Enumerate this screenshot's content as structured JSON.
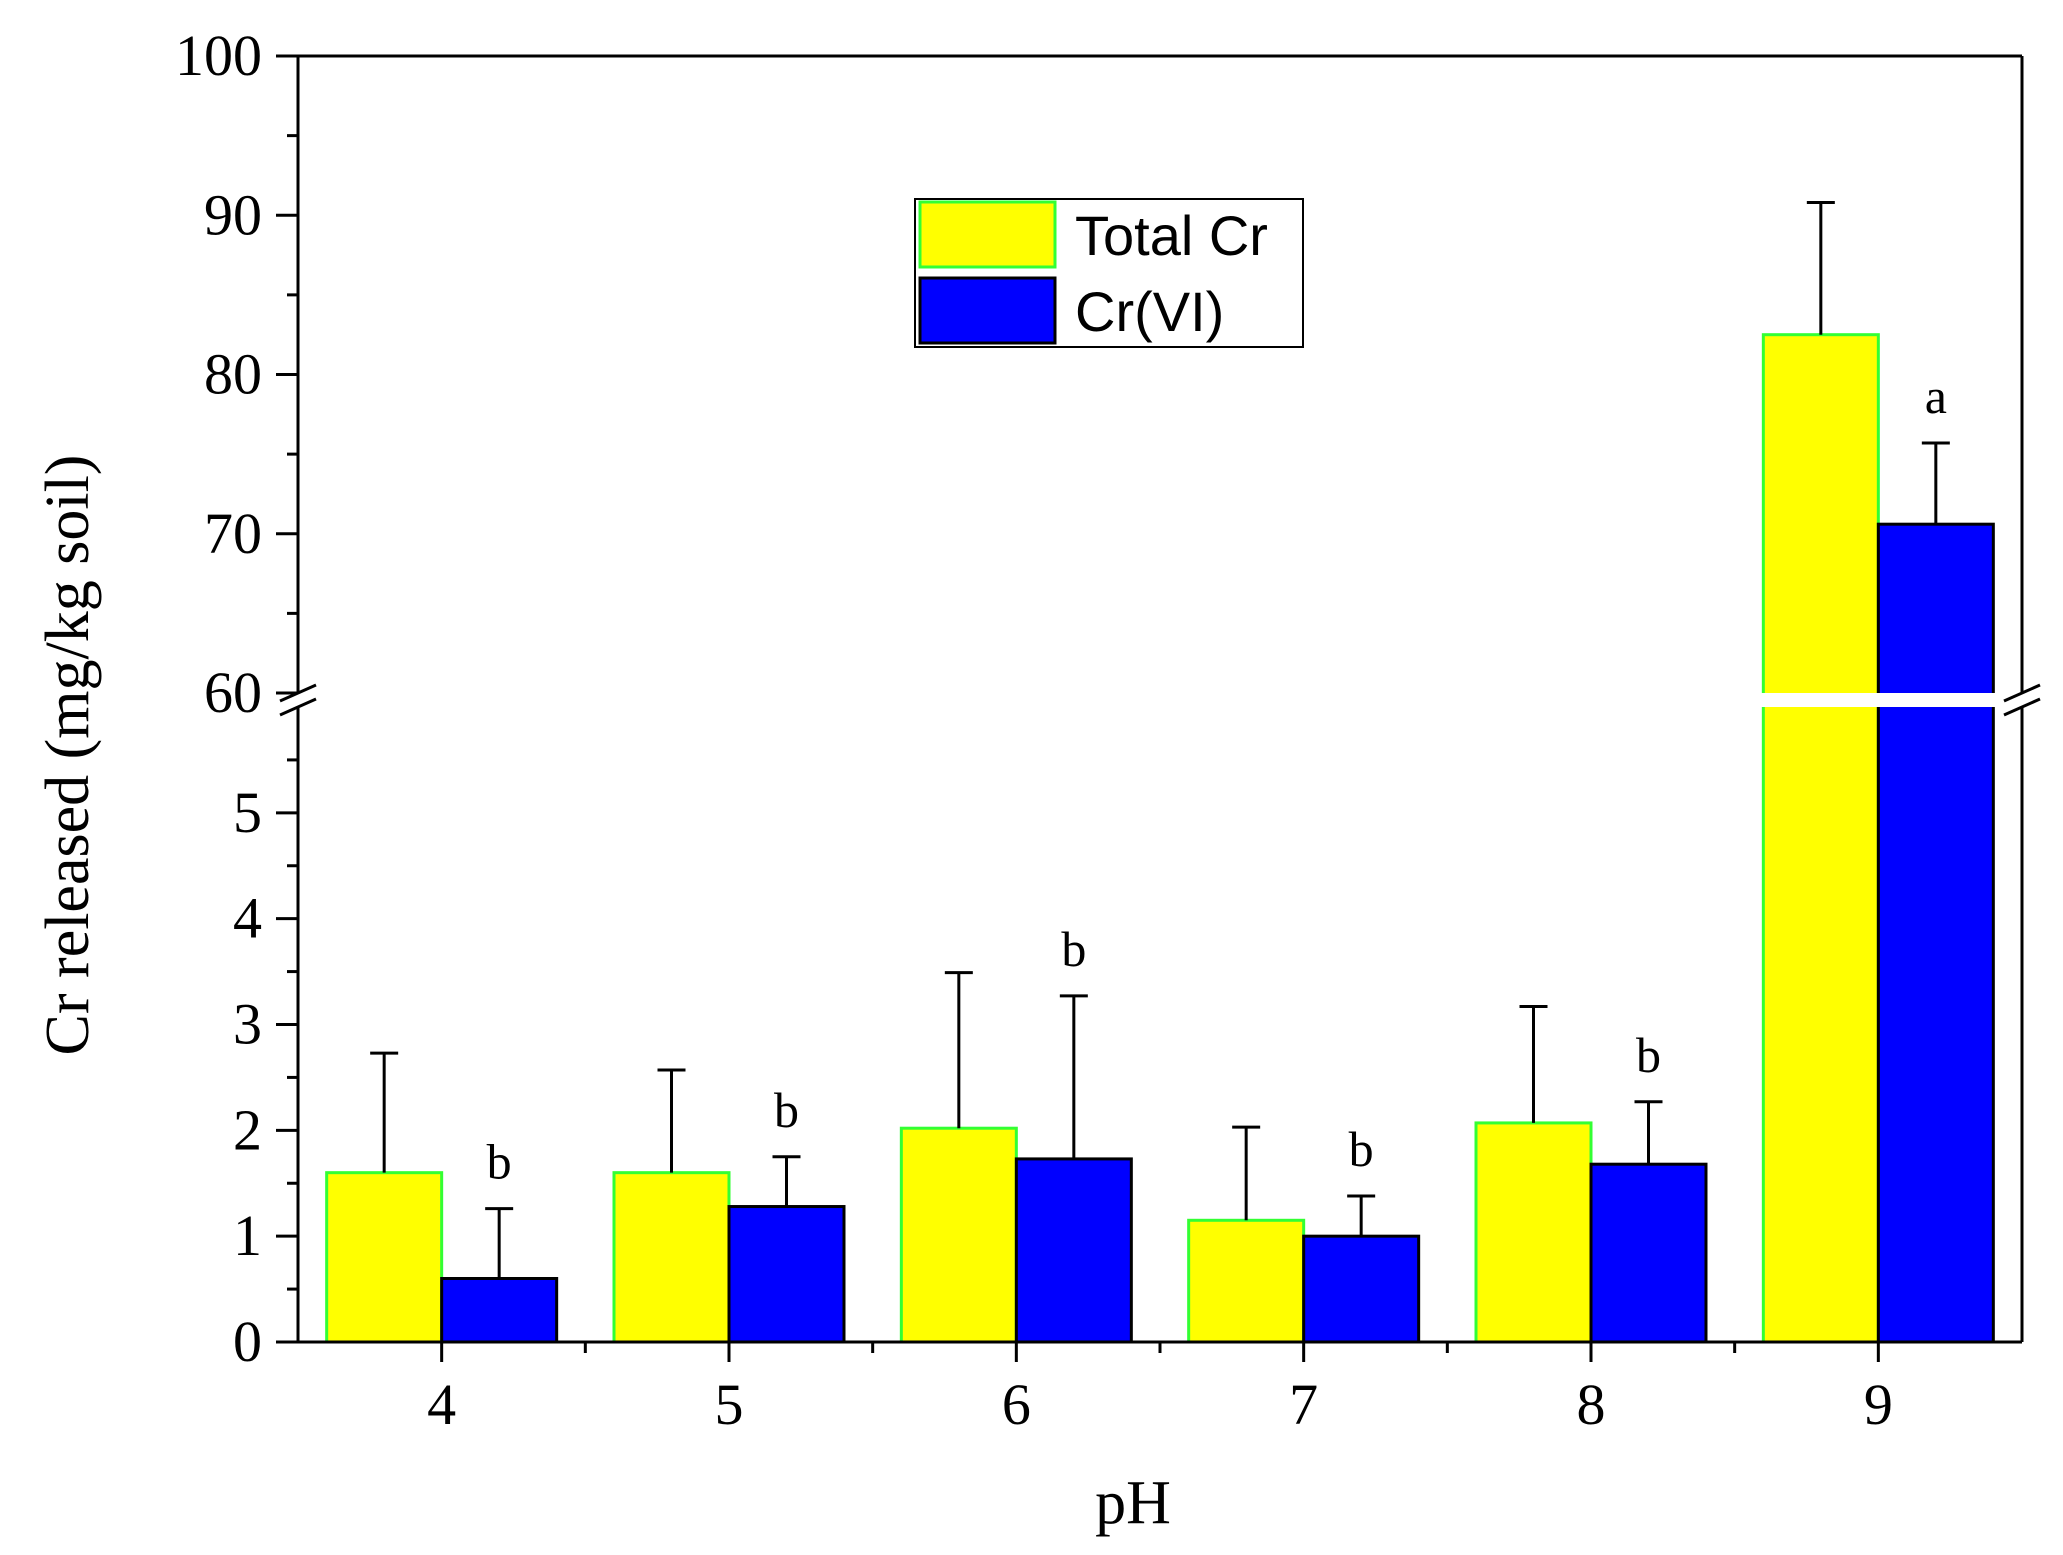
{
  "chart_data": {
    "type": "bar",
    "title": "",
    "xlabel": "pH",
    "ylabel": "Cr released (mg/kg soil)",
    "categories": [
      "4",
      "5",
      "6",
      "7",
      "8",
      "9"
    ],
    "series": [
      {
        "name": "Total Cr",
        "color": "#ffff00",
        "edge_color": "#33ff33",
        "values": [
          1.6,
          1.6,
          2.02,
          1.15,
          2.07,
          82.5
        ],
        "errors": [
          1.13,
          0.97,
          1.47,
          0.88,
          1.1,
          8.3
        ],
        "labels": [
          "",
          "",
          "",
          "",
          "",
          ""
        ]
      },
      {
        "name": "Cr(VI)",
        "color": "#0000ff",
        "edge_color": "#000000",
        "values": [
          0.6,
          1.28,
          1.73,
          1.0,
          1.68,
          70.6
        ],
        "errors": [
          0.66,
          0.47,
          1.54,
          0.38,
          0.59,
          5.1
        ],
        "labels": [
          "b",
          "b",
          "b",
          "b",
          "b",
          "a"
        ]
      }
    ],
    "y_axis": {
      "broken": true,
      "lower_range": [
        0,
        6
      ],
      "upper_range": [
        60,
        100
      ],
      "lower_ticks": [
        "0",
        "1",
        "2",
        "3",
        "4",
        "5"
      ],
      "upper_ticks": [
        "60",
        "70",
        "80",
        "90",
        "100"
      ]
    },
    "legend": {
      "position": "top-center",
      "entries": [
        "Total Cr",
        "Cr(VI)"
      ]
    },
    "grid": false
  }
}
